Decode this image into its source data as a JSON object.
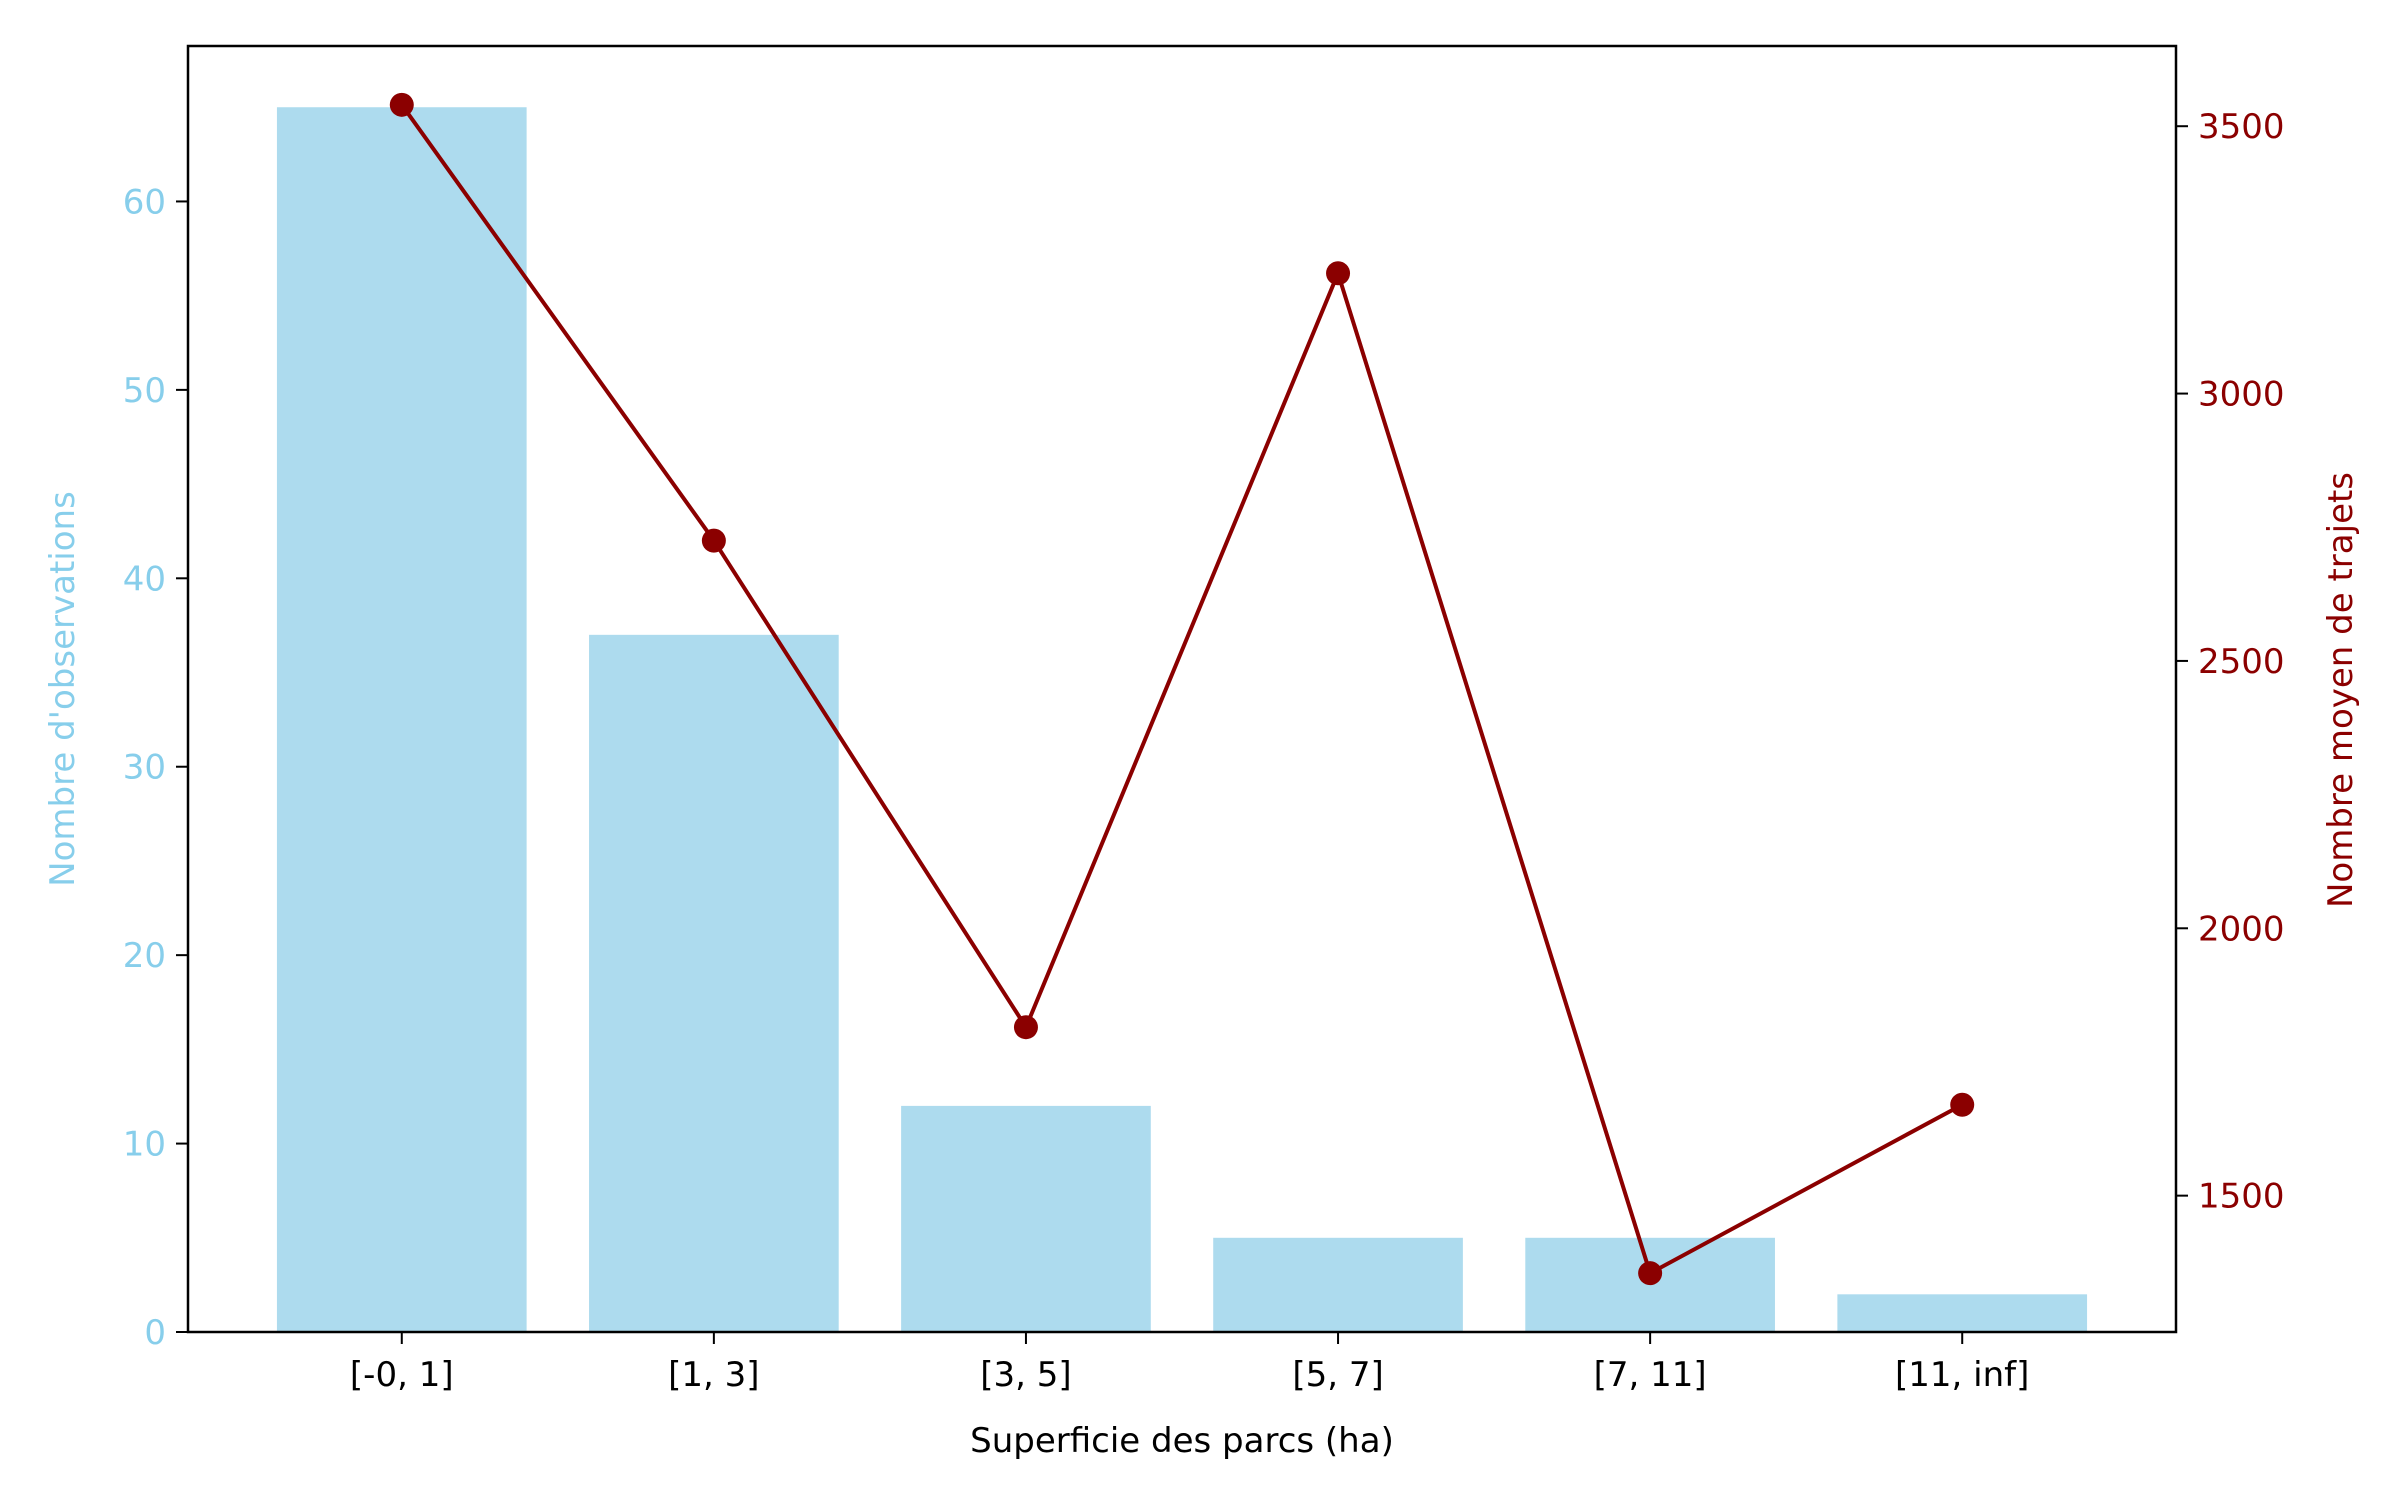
{
  "chart_data": {
    "type": "bar",
    "categories": [
      "[-0, 1]",
      "[1, 3]",
      "[3, 5]",
      "[5, 7]",
      "[7, 11]",
      "[11, inf]"
    ],
    "series": [
      {
        "type": "bar",
        "axis": "left",
        "values": [
          65,
          37,
          12,
          5,
          5,
          2
        ],
        "color": "#ADDBEE"
      },
      {
        "type": "line",
        "axis": "right",
        "values": [
          3540,
          2725,
          1815,
          3225,
          1355,
          1670
        ],
        "color": "#8B0000",
        "marker": "circle"
      }
    ],
    "xlabel": "Superficie des parcs (ha)",
    "ylabel_left": "Nombre d'observations",
    "ylabel_right": "Nombre moyen de trajets",
    "ylim_left": [
      0,
      68.25
    ],
    "ylim_right": [
      1245,
      3650
    ],
    "yticks_left": [
      0,
      10,
      20,
      30,
      40,
      50,
      60
    ],
    "yticks_right": [
      1500,
      2000,
      2500,
      3000,
      3500
    ],
    "left_axis_color": "#87CEEB",
    "right_axis_color": "#8B0000",
    "grid": false,
    "legend": "none"
  }
}
